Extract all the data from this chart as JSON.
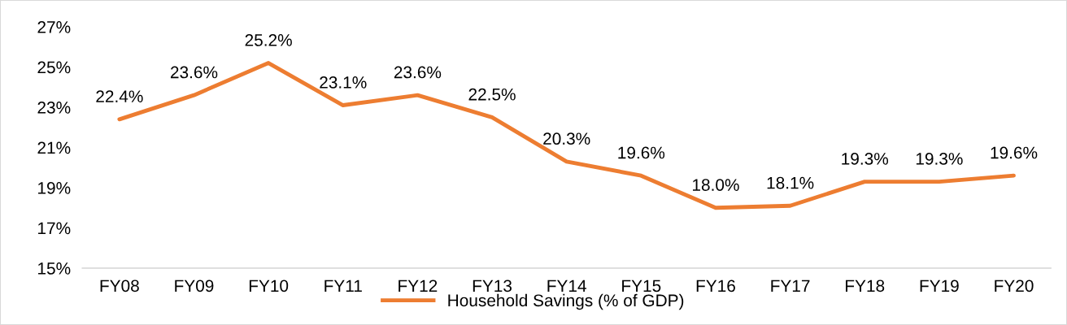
{
  "chart_data": {
    "type": "line",
    "categories": [
      "FY08",
      "FY09",
      "FY10",
      "FY11",
      "FY12",
      "FY13",
      "FY14",
      "FY15",
      "FY16",
      "FY17",
      "FY18",
      "FY19",
      "FY20"
    ],
    "series": [
      {
        "name": "Household Savings (% of GDP)",
        "color": "#ed7d31",
        "values": [
          22.4,
          23.6,
          25.2,
          23.1,
          23.6,
          22.5,
          20.3,
          19.6,
          18.0,
          18.1,
          19.3,
          19.3,
          19.6
        ],
        "value_labels": [
          "22.4%",
          "23.6%",
          "25.2%",
          "23.1%",
          "23.6%",
          "22.5%",
          "20.3%",
          "19.6%",
          "18.0%",
          "18.1%",
          "19.3%",
          "19.3%",
          "19.6%"
        ]
      }
    ],
    "ylim": [
      15,
      27
    ],
    "yticks": [
      {
        "value": 15,
        "label": "15%"
      },
      {
        "value": 17,
        "label": "17%"
      },
      {
        "value": 19,
        "label": "19%"
      },
      {
        "value": 21,
        "label": "21%"
      },
      {
        "value": 23,
        "label": "23%"
      },
      {
        "value": 25,
        "label": "25%"
      },
      {
        "value": 27,
        "label": "27%"
      }
    ],
    "grid": false,
    "legend": "bottom",
    "marker": "none",
    "line_style": "solid"
  }
}
